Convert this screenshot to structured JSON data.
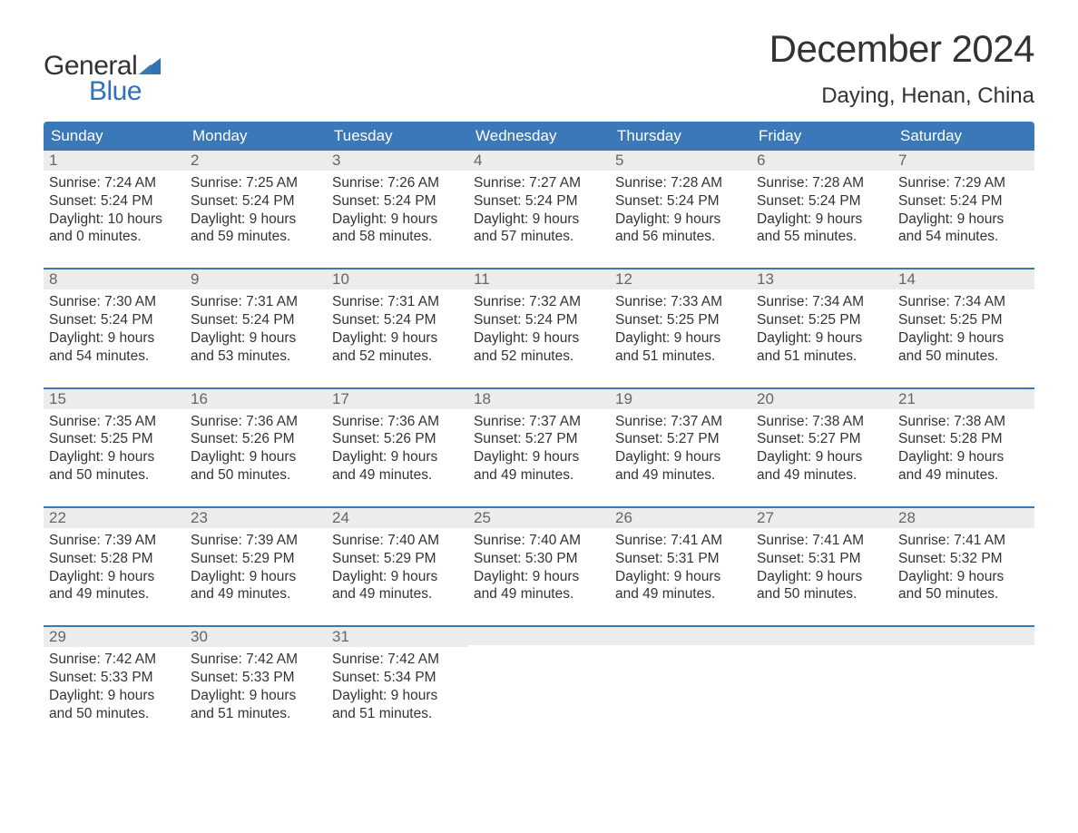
{
  "colors": {
    "header_bg": "#3a78b8",
    "header_text": "#ffffff",
    "daynum_bg": "#ececec",
    "daynum_text": "#666666",
    "body_text": "#333333",
    "accent_blue": "#2f72b6",
    "border_blue": "#3a78b8",
    "background": "#ffffff"
  },
  "typography": {
    "month_title_size_pt": 32,
    "location_size_pt": 18,
    "weekday_size_pt": 13,
    "daynum_size_pt": 13,
    "body_size_pt": 12,
    "font_family": "Arial"
  },
  "logo": {
    "text_general": "General",
    "text_blue": "Blue"
  },
  "title": {
    "month": "December 2024",
    "location": "Daying, Henan, China"
  },
  "weekdays": [
    "Sunday",
    "Monday",
    "Tuesday",
    "Wednesday",
    "Thursday",
    "Friday",
    "Saturday"
  ],
  "labels": {
    "sunrise": "Sunrise: ",
    "sunset": "Sunset: ",
    "daylight": "Daylight: "
  },
  "weeks": [
    [
      {
        "n": "1",
        "sunrise": "7:24 AM",
        "sunset": "5:24 PM",
        "daylight": "10 hours and 0 minutes."
      },
      {
        "n": "2",
        "sunrise": "7:25 AM",
        "sunset": "5:24 PM",
        "daylight": "9 hours and 59 minutes."
      },
      {
        "n": "3",
        "sunrise": "7:26 AM",
        "sunset": "5:24 PM",
        "daylight": "9 hours and 58 minutes."
      },
      {
        "n": "4",
        "sunrise": "7:27 AM",
        "sunset": "5:24 PM",
        "daylight": "9 hours and 57 minutes."
      },
      {
        "n": "5",
        "sunrise": "7:28 AM",
        "sunset": "5:24 PM",
        "daylight": "9 hours and 56 minutes."
      },
      {
        "n": "6",
        "sunrise": "7:28 AM",
        "sunset": "5:24 PM",
        "daylight": "9 hours and 55 minutes."
      },
      {
        "n": "7",
        "sunrise": "7:29 AM",
        "sunset": "5:24 PM",
        "daylight": "9 hours and 54 minutes."
      }
    ],
    [
      {
        "n": "8",
        "sunrise": "7:30 AM",
        "sunset": "5:24 PM",
        "daylight": "9 hours and 54 minutes."
      },
      {
        "n": "9",
        "sunrise": "7:31 AM",
        "sunset": "5:24 PM",
        "daylight": "9 hours and 53 minutes."
      },
      {
        "n": "10",
        "sunrise": "7:31 AM",
        "sunset": "5:24 PM",
        "daylight": "9 hours and 52 minutes."
      },
      {
        "n": "11",
        "sunrise": "7:32 AM",
        "sunset": "5:24 PM",
        "daylight": "9 hours and 52 minutes."
      },
      {
        "n": "12",
        "sunrise": "7:33 AM",
        "sunset": "5:25 PM",
        "daylight": "9 hours and 51 minutes."
      },
      {
        "n": "13",
        "sunrise": "7:34 AM",
        "sunset": "5:25 PM",
        "daylight": "9 hours and 51 minutes."
      },
      {
        "n": "14",
        "sunrise": "7:34 AM",
        "sunset": "5:25 PM",
        "daylight": "9 hours and 50 minutes."
      }
    ],
    [
      {
        "n": "15",
        "sunrise": "7:35 AM",
        "sunset": "5:25 PM",
        "daylight": "9 hours and 50 minutes."
      },
      {
        "n": "16",
        "sunrise": "7:36 AM",
        "sunset": "5:26 PM",
        "daylight": "9 hours and 50 minutes."
      },
      {
        "n": "17",
        "sunrise": "7:36 AM",
        "sunset": "5:26 PM",
        "daylight": "9 hours and 49 minutes."
      },
      {
        "n": "18",
        "sunrise": "7:37 AM",
        "sunset": "5:27 PM",
        "daylight": "9 hours and 49 minutes."
      },
      {
        "n": "19",
        "sunrise": "7:37 AM",
        "sunset": "5:27 PM",
        "daylight": "9 hours and 49 minutes."
      },
      {
        "n": "20",
        "sunrise": "7:38 AM",
        "sunset": "5:27 PM",
        "daylight": "9 hours and 49 minutes."
      },
      {
        "n": "21",
        "sunrise": "7:38 AM",
        "sunset": "5:28 PM",
        "daylight": "9 hours and 49 minutes."
      }
    ],
    [
      {
        "n": "22",
        "sunrise": "7:39 AM",
        "sunset": "5:28 PM",
        "daylight": "9 hours and 49 minutes."
      },
      {
        "n": "23",
        "sunrise": "7:39 AM",
        "sunset": "5:29 PM",
        "daylight": "9 hours and 49 minutes."
      },
      {
        "n": "24",
        "sunrise": "7:40 AM",
        "sunset": "5:29 PM",
        "daylight": "9 hours and 49 minutes."
      },
      {
        "n": "25",
        "sunrise": "7:40 AM",
        "sunset": "5:30 PM",
        "daylight": "9 hours and 49 minutes."
      },
      {
        "n": "26",
        "sunrise": "7:41 AM",
        "sunset": "5:31 PM",
        "daylight": "9 hours and 49 minutes."
      },
      {
        "n": "27",
        "sunrise": "7:41 AM",
        "sunset": "5:31 PM",
        "daylight": "9 hours and 50 minutes."
      },
      {
        "n": "28",
        "sunrise": "7:41 AM",
        "sunset": "5:32 PM",
        "daylight": "9 hours and 50 minutes."
      }
    ],
    [
      {
        "n": "29",
        "sunrise": "7:42 AM",
        "sunset": "5:33 PM",
        "daylight": "9 hours and 50 minutes."
      },
      {
        "n": "30",
        "sunrise": "7:42 AM",
        "sunset": "5:33 PM",
        "daylight": "9 hours and 51 minutes."
      },
      {
        "n": "31",
        "sunrise": "7:42 AM",
        "sunset": "5:34 PM",
        "daylight": "9 hours and 51 minutes."
      },
      null,
      null,
      null,
      null
    ]
  ]
}
